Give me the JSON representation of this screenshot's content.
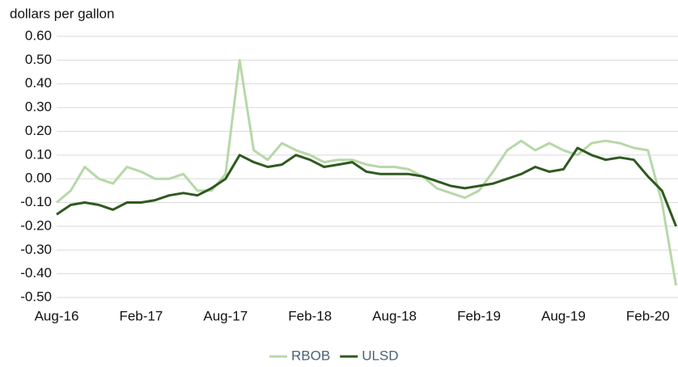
{
  "chart_data": {
    "type": "line",
    "y_label": "dollars per gallon",
    "categories": [
      "Aug-16",
      null,
      null,
      null,
      null,
      null,
      "Feb-17",
      null,
      null,
      null,
      null,
      null,
      "Aug-17",
      null,
      null,
      null,
      null,
      null,
      "Feb-18",
      null,
      null,
      null,
      null,
      null,
      "Aug-18",
      null,
      null,
      null,
      null,
      null,
      "Feb-19",
      null,
      null,
      null,
      null,
      null,
      "Aug-19",
      null,
      null,
      null,
      null,
      null,
      "Feb-20",
      null,
      null
    ],
    "series": [
      {
        "name": "RBOB",
        "color": "#b7d8a8",
        "values": [
          -0.1,
          -0.05,
          0.05,
          0.0,
          -0.02,
          0.05,
          0.03,
          0.0,
          0.0,
          0.02,
          -0.05,
          -0.05,
          0.02,
          0.5,
          0.12,
          0.08,
          0.15,
          0.12,
          0.1,
          0.07,
          0.08,
          0.08,
          0.06,
          0.05,
          0.05,
          0.04,
          0.01,
          -0.04,
          -0.06,
          -0.08,
          -0.05,
          0.03,
          0.12,
          0.16,
          0.12,
          0.15,
          0.12,
          0.1,
          0.15,
          0.16,
          0.15,
          0.13,
          0.12,
          -0.1,
          -0.45
        ]
      },
      {
        "name": "ULSD",
        "color": "#2e5a1f",
        "values": [
          -0.15,
          -0.11,
          -0.1,
          -0.11,
          -0.13,
          -0.1,
          -0.1,
          -0.09,
          -0.07,
          -0.06,
          -0.07,
          -0.04,
          0.0,
          0.1,
          0.07,
          0.05,
          0.06,
          0.1,
          0.08,
          0.05,
          0.06,
          0.07,
          0.03,
          0.02,
          0.02,
          0.02,
          0.01,
          -0.01,
          -0.03,
          -0.04,
          -0.03,
          -0.02,
          0.0,
          0.02,
          0.05,
          0.03,
          0.04,
          0.13,
          0.1,
          0.08,
          0.09,
          0.08,
          0.01,
          -0.05,
          -0.2
        ]
      }
    ],
    "ylim": [
      -0.5,
      0.6
    ],
    "yticks": [
      {
        "value": 0.6,
        "label": "0.60"
      },
      {
        "value": 0.5,
        "label": "0.50"
      },
      {
        "value": 0.4,
        "label": "0.40"
      },
      {
        "value": 0.3,
        "label": "0.30"
      },
      {
        "value": 0.2,
        "label": "0.20"
      },
      {
        "value": 0.1,
        "label": "0.10"
      },
      {
        "value": 0,
        "label": "0.00"
      },
      {
        "value": -0.1,
        "label": "-0.10"
      },
      {
        "value": -0.2,
        "label": "-0.20"
      },
      {
        "value": -0.3,
        "label": "-0.30"
      },
      {
        "value": -0.4,
        "label": "-0.40"
      },
      {
        "value": -0.5,
        "label": "-0.50"
      }
    ],
    "grid": true
  }
}
